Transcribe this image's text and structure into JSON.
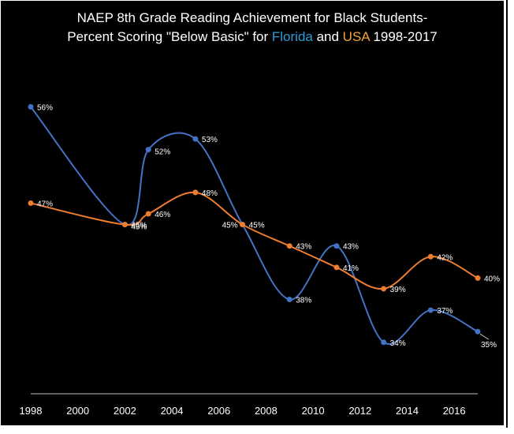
{
  "chart_data": {
    "type": "line",
    "title_parts": [
      {
        "text": "NAEP 8th Grade Reading Achievement for Black Students-",
        "style": "plain",
        "newline": true
      },
      {
        "text": "Percent Scoring \"Below Basic\" for ",
        "style": "plain"
      },
      {
        "text": "Florida",
        "style": "fl"
      },
      {
        "text": " and ",
        "style": "plain"
      },
      {
        "text": "USA",
        "style": "us"
      },
      {
        "text": " 1998-2017",
        "style": "plain"
      }
    ],
    "xlim": [
      1998,
      2017
    ],
    "ylim": [
      30,
      62
    ],
    "x_ticks": [
      1998,
      2000,
      2002,
      2004,
      2006,
      2008,
      2010,
      2012,
      2014,
      2016
    ],
    "x_tick_labels": [
      "1998",
      "2000",
      "2002",
      "2004",
      "2006",
      "2008",
      "2010",
      "2012",
      "2014",
      "2016"
    ],
    "grid": false,
    "legend": "none",
    "series": [
      {
        "name": "Florida",
        "color": "#4472c4",
        "x": [
          1998,
          2002,
          2003,
          2005,
          2007,
          2009,
          2011,
          2013,
          2015,
          2017
        ],
        "values": [
          56,
          45,
          52,
          53,
          45,
          38,
          43,
          34,
          37,
          35
        ],
        "labels": [
          "56%",
          "45%",
          "52%",
          "53%",
          "45%",
          "38%",
          "43%",
          "34%",
          "37%",
          "35%"
        ]
      },
      {
        "name": "USA",
        "color": "#ed7d31",
        "x": [
          1998,
          2002,
          2003,
          2005,
          2007,
          2009,
          2011,
          2013,
          2015,
          2017
        ],
        "values": [
          47,
          45,
          46,
          48,
          45,
          43,
          41,
          39,
          42,
          40
        ],
        "labels": [
          "47%",
          "45%",
          "46%",
          "48%",
          "45%",
          "43%",
          "41%",
          "39%",
          "42%",
          "40%"
        ]
      }
    ]
  }
}
